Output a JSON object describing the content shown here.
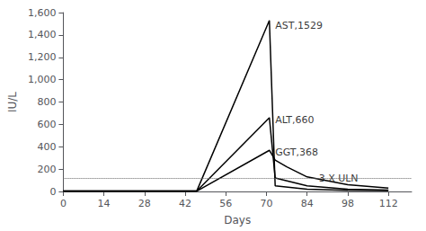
{
  "chart_data": {
    "type": "line",
    "xlabel": "Days",
    "ylabel": "IU/L",
    "xlim": [
      0,
      120
    ],
    "ylim": [
      0,
      1600
    ],
    "xticks": [
      0,
      14,
      28,
      42,
      56,
      70,
      84,
      98,
      112
    ],
    "yticks": [
      0,
      200,
      400,
      600,
      800,
      1000,
      1200,
      1400,
      1600
    ],
    "grid": false,
    "series": [
      {
        "name": "AST,1529",
        "color": "#000000",
        "label_at": [
          73,
          1480
        ],
        "x": [
          0,
          46,
          71,
          73,
          84,
          98,
          112
        ],
        "values": [
          5,
          5,
          1529,
          50,
          20,
          10,
          8
        ]
      },
      {
        "name": "ALT,660",
        "color": "#000000",
        "label_at": [
          73,
          640
        ],
        "x": [
          0,
          46,
          71,
          73,
          84,
          98,
          112
        ],
        "values": [
          4,
          4,
          660,
          120,
          50,
          20,
          12
        ]
      },
      {
        "name": "GGT,368",
        "color": "#000000",
        "label_at": [
          73,
          350
        ],
        "x": [
          0,
          46,
          71,
          73,
          77,
          84,
          98,
          112
        ],
        "values": [
          3,
          3,
          368,
          280,
          220,
          130,
          60,
          30
        ]
      }
    ],
    "reference_line": {
      "y": 120,
      "label": "3 X ULN",
      "label_x": 88,
      "color": "#666666",
      "line_style": "dotted"
    }
  }
}
